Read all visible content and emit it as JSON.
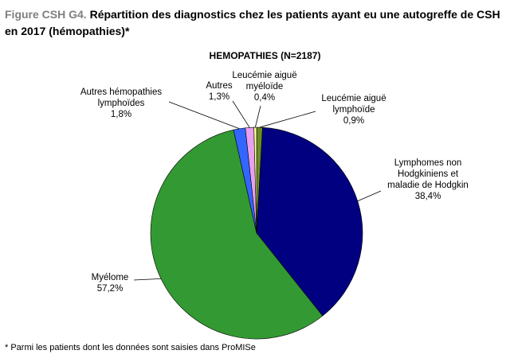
{
  "figure": {
    "prefix": "Figure CSH G4.",
    "title": " Répartition des diagnostics chez les patients ayant eu une autogreffe de CSH en 2017 (hémopathies)*",
    "footnote": "* Parmi les patients dont les données sont saisies dans ProMISe"
  },
  "chart_data": {
    "type": "pie",
    "title": "HEMOPATHIES  (N=2187)",
    "slices": [
      {
        "label": [
          "Leucémie aiguë",
          "lymphoïde"
        ],
        "value_label": "0,9%",
        "value": 0.9,
        "color": "#6b8e23"
      },
      {
        "label": [
          "Lymphomes non",
          "Hodgkiniens et",
          "maladie de Hodgkin"
        ],
        "value_label": "38,4%",
        "value": 38.4,
        "color": "#000080"
      },
      {
        "label": [
          "Myélome"
        ],
        "value_label": "57,2%",
        "value": 57.2,
        "color": "#339933"
      },
      {
        "label": [
          "Autres hémopathies",
          "lymphoïdes"
        ],
        "value_label": "1,8%",
        "value": 1.8,
        "color": "#3366ff"
      },
      {
        "label": [
          "Autres"
        ],
        "value_label": "1,3%",
        "value": 1.3,
        "color": "#e8a0f0"
      },
      {
        "label": [
          "Leucémie aiguë",
          "myéloïde"
        ],
        "value_label": "0,4%",
        "value": 0.4,
        "color": "#ffff99"
      }
    ]
  }
}
